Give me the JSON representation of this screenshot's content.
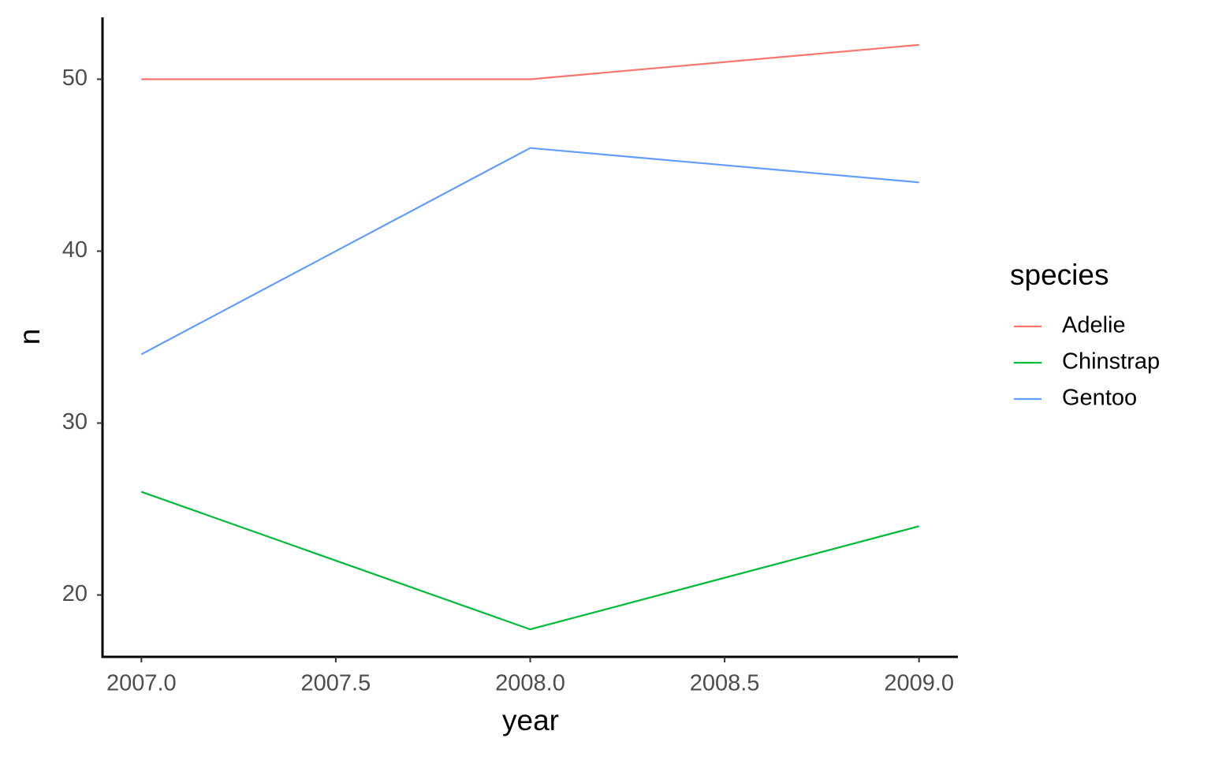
{
  "chart_data": {
    "type": "line",
    "x_label": "year",
    "y_label": "n",
    "x": [
      2007,
      2008,
      2009
    ],
    "series": [
      {
        "name": "Adelie",
        "color": "#f8766d",
        "values": [
          50,
          50,
          52
        ]
      },
      {
        "name": "Chinstrap",
        "color": "#00ba38",
        "values": [
          26,
          18,
          24
        ]
      },
      {
        "name": "Gentoo",
        "color": "#619cff",
        "values": [
          34,
          46,
          44
        ]
      }
    ],
    "xlim": [
      2006.9,
      2009.1
    ],
    "xticks": [
      {
        "value": 2007,
        "label": "2007.0"
      },
      {
        "value": 2007.5,
        "label": "2007.5"
      },
      {
        "value": 2008,
        "label": "2008.0"
      },
      {
        "value": 2008.5,
        "label": "2008.5"
      },
      {
        "value": 2009,
        "label": "2009.0"
      }
    ],
    "ylim": [
      16.4,
      53.6
    ],
    "yticks": [
      20,
      30,
      40,
      50
    ],
    "grid": false,
    "legend_title": "species",
    "legend_position": "right"
  }
}
